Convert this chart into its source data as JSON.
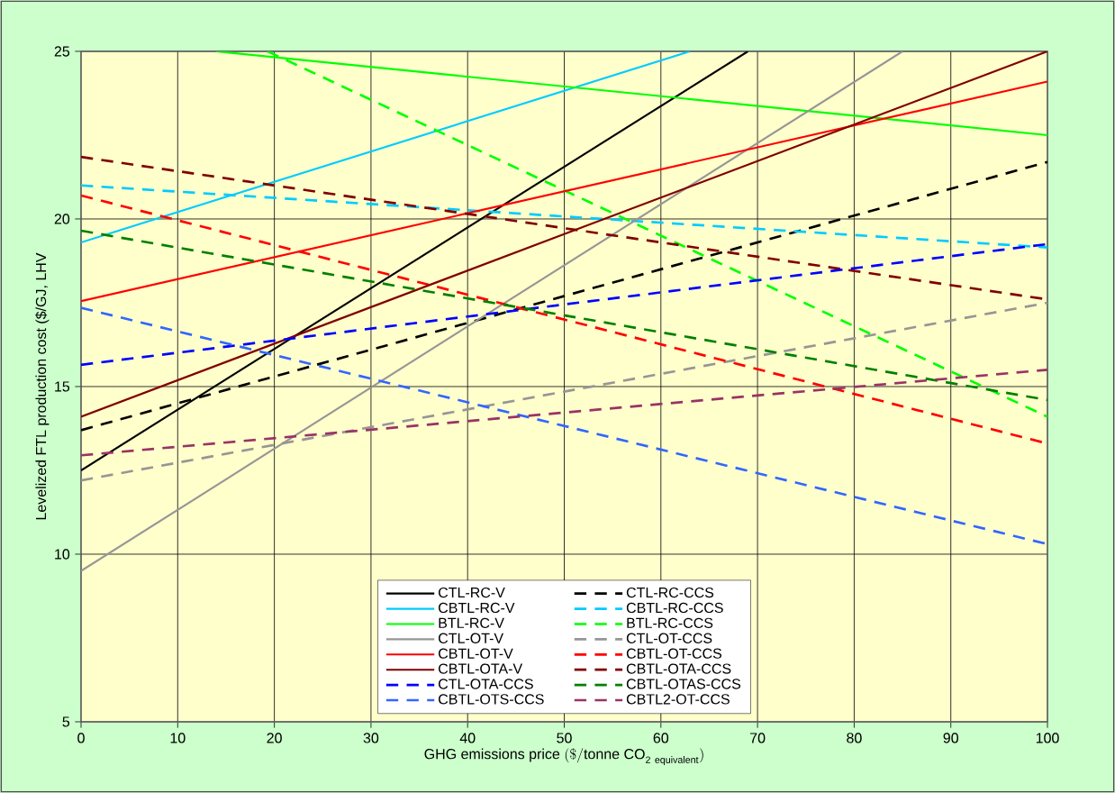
{
  "chart_data": {
    "type": "line",
    "xlabel": "\\mathrm{GHG\\ emissions\\ price\\ (\\$/tonne\\ CO}_{\\mathrm{2\\ equivalent}}\\mathrm{)}",
    "ylabel": "Levelized FTL production cost ($/GJ, LHV",
    "xlim": [
      0,
      100
    ],
    "ylim": [
      5,
      25
    ],
    "xticks": [
      0,
      10,
      20,
      30,
      40,
      50,
      60,
      70,
      80,
      90,
      100
    ],
    "yticks": [
      5,
      10,
      15,
      20,
      25
    ],
    "grid": true,
    "legend": "bottom",
    "series": [
      {
        "name": "CTL-RC-V",
        "color": "#000000",
        "line_style": "solid",
        "x": [
          0,
          69
        ],
        "values": [
          12.5,
          25
        ]
      },
      {
        "name": "CTL-RC-CCS",
        "color": "#000000",
        "line_style": "dashed",
        "x": [
          0,
          100
        ],
        "values": [
          13.7,
          21.7
        ]
      },
      {
        "name": "CBTL-RC-V",
        "color": "#00ccff",
        "line_style": "solid",
        "x": [
          0,
          63
        ],
        "values": [
          19.3,
          25
        ]
      },
      {
        "name": "CBTL-RC-CCS",
        "color": "#00ccff",
        "line_style": "dashed",
        "x": [
          0,
          100
        ],
        "values": [
          21.0,
          19.15
        ]
      },
      {
        "name": "BTL-RC-V",
        "color": "#00ff00",
        "line_style": "solid",
        "x": [
          14,
          100
        ],
        "values": [
          25,
          22.5
        ]
      },
      {
        "name": "BTL-RC-CCS",
        "color": "#00ff00",
        "line_style": "dashed",
        "x": [
          19.3,
          100
        ],
        "values": [
          25,
          14.1
        ]
      },
      {
        "name": "CTL-OT-V",
        "color": "#969696",
        "line_style": "solid",
        "x": [
          0,
          85
        ],
        "values": [
          9.5,
          25
        ]
      },
      {
        "name": "CTL-OT-CCS",
        "color": "#969696",
        "line_style": "dashed",
        "x": [
          0,
          100
        ],
        "values": [
          12.2,
          17.5
        ]
      },
      {
        "name": "CBTL-OT-V",
        "color": "#ff0000",
        "line_style": "solid",
        "x": [
          0,
          100
        ],
        "values": [
          17.55,
          24.1
        ]
      },
      {
        "name": "CBTL-OT-CCS",
        "color": "#ff0000",
        "line_style": "dashed",
        "x": [
          0,
          100
        ],
        "values": [
          20.7,
          13.3
        ]
      },
      {
        "name": "CBTL-OTA-V",
        "color": "#800000",
        "line_style": "solid",
        "x": [
          0,
          100
        ],
        "values": [
          14.1,
          25
        ]
      },
      {
        "name": "CBTL-OTA-CCS",
        "color": "#800000",
        "line_style": "dashed",
        "x": [
          0,
          100
        ],
        "values": [
          21.85,
          17.6
        ]
      },
      {
        "name": "CTL-OTA-CCS",
        "color": "#0000ff",
        "line_style": "dashed",
        "x": [
          0,
          100
        ],
        "values": [
          15.65,
          19.25
        ]
      },
      {
        "name": "CBTL-OTAS-CCS",
        "color": "#008000",
        "line_style": "dashed",
        "x": [
          0,
          100
        ],
        "values": [
          19.65,
          14.6
        ]
      },
      {
        "name": "CBTL-OTS-CCS",
        "color": "#3366ff",
        "line_style": "dashed",
        "x": [
          0,
          100
        ],
        "values": [
          17.35,
          10.3
        ]
      },
      {
        "name": "CBTL2-OT-CCS",
        "color": "#993366",
        "line_style": "dashed",
        "x": [
          0,
          100
        ],
        "values": [
          12.95,
          15.5
        ]
      }
    ]
  }
}
